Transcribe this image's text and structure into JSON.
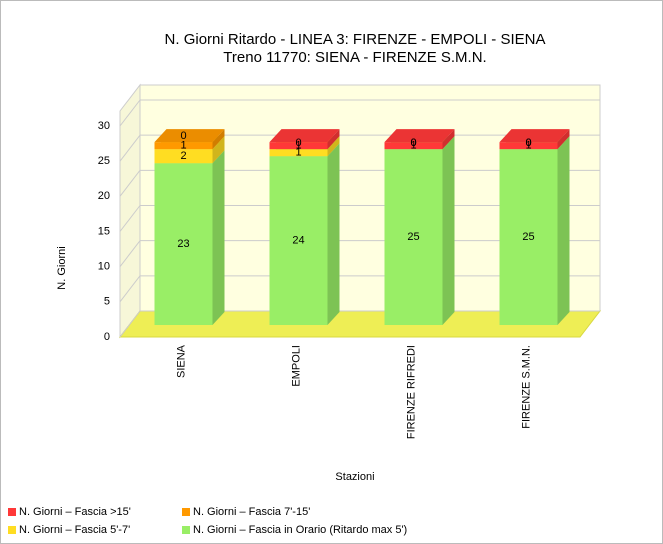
{
  "chart_data": {
    "type": "bar3d_stacked",
    "title": "N. Giorni Ritardo - LINEA 3: FIRENZE - EMPOLI - SIENA",
    "subtitle": "Treno 11770: SIENA - FIRENZE S.M.N.",
    "x_label": "Stazioni",
    "y_label": "N. Giorni",
    "categories": [
      "SIENA",
      "EMPOLI",
      "FIRENZE RIFREDI",
      "FIRENZE S.M.N."
    ],
    "series": [
      {
        "name": "N. Giorni – Fascia >15'",
        "color": "#ff3838",
        "values": [
          0,
          1,
          1,
          1
        ]
      },
      {
        "name": "N. Giorni – Fascia 7'-15'",
        "color": "#ff9900",
        "values": [
          1,
          0,
          0,
          0
        ]
      },
      {
        "name": "N. Giorni – Fascia 5'-7'",
        "color": "#ffdd22",
        "values": [
          2,
          1,
          0,
          0
        ]
      },
      {
        "name": "N. Giorni – Fascia in Orario (Ritardo max 5')",
        "color": "#99ee66",
        "values": [
          23,
          24,
          25,
          25
        ]
      }
    ],
    "ylim": [
      0,
      30
    ],
    "yticks": [
      0,
      5,
      10,
      15,
      20,
      25,
      30
    ],
    "grid": true,
    "legend": "bottom"
  }
}
